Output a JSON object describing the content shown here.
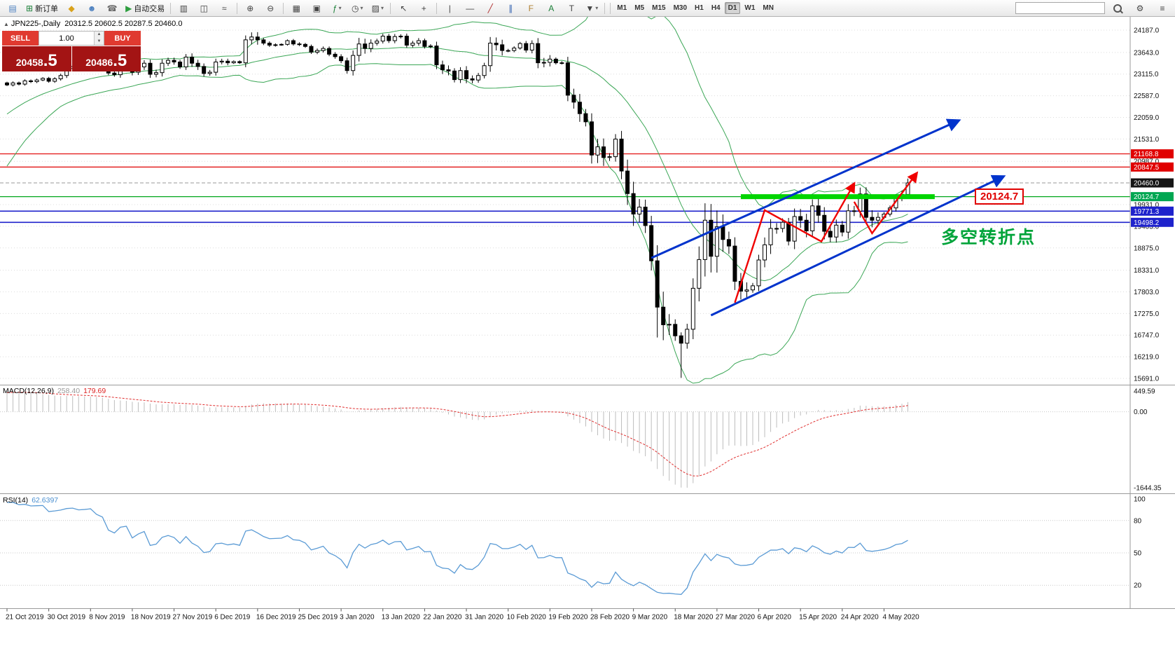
{
  "toolbar": {
    "items": [
      {
        "name": "new-chart-icon",
        "glyph": "▤",
        "color": "#4a7fbf"
      },
      {
        "name": "new-order-button",
        "glyph": "⊞",
        "label": "新订单",
        "color": "#1a7f37"
      },
      {
        "name": "mql5-market-icon",
        "glyph": "◆",
        "color": "#d9a21b"
      },
      {
        "name": "community-icon",
        "glyph": "☻",
        "color": "#4a7fbf"
      },
      {
        "name": "support-icon",
        "glyph": "☎",
        "color": "#6a6a6a"
      },
      {
        "name": "autotrade-button",
        "glyph": "▶",
        "label": "自动交易",
        "color": "#2e9e3f"
      },
      {
        "sep": true
      },
      {
        "name": "bar-chart-icon",
        "glyph": "▥",
        "color": "#444444"
      },
      {
        "name": "candlestick-chart-icon",
        "glyph": "◫",
        "color": "#444444"
      },
      {
        "name": "line-chart-icon",
        "glyph": "≈",
        "color": "#444444"
      },
      {
        "sep": true
      },
      {
        "name": "zoom-in-icon",
        "glyph": "⊕",
        "color": "#444444"
      },
      {
        "name": "zoom-out-icon",
        "glyph": "⊖",
        "color": "#444444"
      },
      {
        "sep": true
      },
      {
        "name": "tile-windows-icon",
        "glyph": "▦",
        "color": "#444444"
      },
      {
        "name": "auto-arrange-icon",
        "glyph": "▣",
        "color": "#444444"
      },
      {
        "name": "indicators-icon",
        "glyph": "ƒ",
        "color": "#1a7f37",
        "dropdown": true
      },
      {
        "name": "periods-icon",
        "glyph": "◷",
        "color": "#444444",
        "dropdown": true
      },
      {
        "name": "templates-icon",
        "glyph": "▨",
        "color": "#444444",
        "dropdown": true
      },
      {
        "sep": true
      },
      {
        "name": "cursor-icon",
        "glyph": "↖",
        "color": "#444444"
      },
      {
        "name": "crosshair-icon",
        "glyph": "+",
        "color": "#444444"
      },
      {
        "sep": true
      },
      {
        "name": "vertical-line-icon",
        "glyph": "|",
        "color": "#444444"
      },
      {
        "name": "horizontal-line-icon",
        "glyph": "—",
        "color": "#444444"
      },
      {
        "name": "trendline-icon",
        "glyph": "╱",
        "color": "#b03030"
      },
      {
        "name": "channel-icon",
        "glyph": "∥",
        "color": "#3060b0"
      },
      {
        "name": "fibonacci-icon",
        "glyph": "F",
        "color": "#b08030"
      },
      {
        "name": "text-icon",
        "glyph": "A",
        "color": "#1a7f37"
      },
      {
        "name": "label-icon",
        "glyph": "T",
        "color": "#444444"
      },
      {
        "name": "shapes-icon",
        "glyph": "▼",
        "color": "#444444",
        "dropdown": true
      },
      {
        "sep": true
      }
    ],
    "timeframes": [
      "M1",
      "M5",
      "M15",
      "M30",
      "H1",
      "H4",
      "D1",
      "W1",
      "MN"
    ],
    "active_timeframe": "D1",
    "search_value": ""
  },
  "chart_header": {
    "symbol": "JPN225-,Daily",
    "ohlc": "20312.5 20602.5 20287.5 20460.0"
  },
  "trade_panel": {
    "sell_label": "SELL",
    "buy_label": "BUY",
    "volume": "1.00",
    "sell_price_main": "20458",
    "sell_price_frac": ".5",
    "buy_price_main": "20486",
    "buy_price_frac": ".5"
  },
  "price_axis": {
    "grid_labels": [
      "24187.0",
      "23643.0",
      "23115.0",
      "22587.0",
      "22059.0",
      "21531.0",
      "20987.0",
      "19931.0",
      "19403.0",
      "18875.0",
      "18331.0",
      "17803.0",
      "17275.0",
      "16747.0",
      "16219.0",
      "15691.0"
    ],
    "badges": [
      {
        "text": "21168.8",
        "color": "#e00000"
      },
      {
        "text": "20847.5",
        "color": "#e00000"
      },
      {
        "text": "20460.0",
        "color": "#151515"
      },
      {
        "text": "20124.7",
        "color": "#00a651"
      },
      {
        "text": "19771.3",
        "color": "#1e22cc"
      },
      {
        "text": "19498.2",
        "color": "#1e22cc"
      }
    ]
  },
  "annotations": {
    "turning_point_text": "多空转折点",
    "level_label": "20124.7",
    "pivot_level": 20124.7,
    "pivot_color": "#00a61b",
    "pivot_thick_color": "#00d500",
    "thick_segment": {
      "from_idx": 123,
      "to_idx": 155.5
    },
    "resistance_levels": [
      21168.8,
      20847.5
    ],
    "resistance_color": "#e00000",
    "support_levels": [
      19771.3,
      19498.2
    ],
    "support_color": "#1e22cc",
    "current_price": 20460.0,
    "trendlines": [
      {
        "points": [
          [
            108,
            18630
          ],
          [
            159.5,
            21980
          ]
        ],
        "color": "#0033cc"
      },
      {
        "points": [
          [
            118,
            17230
          ],
          [
            167,
            20615
          ]
        ],
        "color": "#0033cc"
      }
    ],
    "impulse_paths": [
      {
        "points": [
          [
            122,
            17540
          ],
          [
            127,
            19795
          ],
          [
            136.5,
            19030
          ],
          [
            142,
            20445
          ]
        ],
        "color": "#f00000"
      },
      {
        "points": [
          [
            142,
            20000
          ],
          [
            145,
            19230
          ],
          [
            152.5,
            20700
          ]
        ],
        "color": "#f00000"
      }
    ]
  },
  "macd": {
    "label": "MACD(12,26,9)",
    "main_value": "258.40",
    "signal_value": "179.69",
    "axis_labels": [
      "449.59",
      "0.00",
      "-1644.35"
    ],
    "axis_values": [
      449.59,
      0,
      -1644.35
    ],
    "histogram_color": "#bdbdbd",
    "signal_color": "#e03030"
  },
  "rsi": {
    "label": "RSI(14)",
    "value": "62.6397",
    "period": 14,
    "axis_labels": [
      "100",
      "80",
      "50",
      "20"
    ],
    "levels": [
      80,
      50,
      20
    ],
    "line_color": "#5b9bd5"
  },
  "chart_data": {
    "type": "candlestick",
    "symbol": "JPN225",
    "timeframe": "Daily",
    "title": "JPN225-,Daily",
    "ohlc_display": [
      20312.5,
      20602.5,
      20287.5,
      20460.0
    ],
    "ylim": [
      15600,
      24450
    ],
    "x_labels": [
      "21 Oct 2019",
      "30 Oct 2019",
      "8 Nov 2019",
      "18 Nov 2019",
      "27 Nov 2019",
      "6 Dec 2019",
      "16 Dec 2019",
      "25 Dec 2019",
      "3 Jan 2020",
      "13 Jan 2020",
      "22 Jan 2020",
      "31 Jan 2020",
      "10 Feb 2020",
      "19 Feb 2020",
      "28 Feb 2020",
      "9 Mar 2020",
      "18 Mar 2020",
      "27 Mar 2020",
      "6 Apr 2020",
      "15 Apr 2020",
      "24 Apr 2020",
      "4 May 2020"
    ],
    "candles_per_label": 7,
    "closes": [
      22850,
      22900,
      22870,
      22950,
      22930,
      22970,
      23010,
      22940,
      23000,
      23080,
      23250,
      23300,
      23280,
      23320,
      23390,
      23330,
      23300,
      23140,
      23100,
      23300,
      23340,
      23160,
      23290,
      23380,
      23110,
      23150,
      23380,
      23450,
      23410,
      23290,
      23530,
      23380,
      23300,
      23130,
      23160,
      23410,
      23430,
      23390,
      23420,
      23390,
      23950,
      24020,
      23950,
      23870,
      23820,
      23830,
      23840,
      23930,
      23850,
      23840,
      23790,
      23650,
      23690,
      23740,
      23600,
      23540,
      23440,
      23200,
      23570,
      23850,
      23740,
      23870,
      23920,
      24040,
      23930,
      24030,
      24040,
      23820,
      23870,
      23930,
      23790,
      23800,
      23340,
      23220,
      23190,
      22980,
      23200,
      23000,
      22970,
      23080,
      23320,
      23870,
      23830,
      23690,
      23690,
      23750,
      23860,
      23700,
      23860,
      23390,
      23400,
      23480,
      23390,
      23390,
      22600,
      22430,
      22150,
      21950,
      21140,
      21340,
      21080,
      21100,
      21530,
      20750,
      20200,
      19700,
      19870,
      19420,
      18560,
      17430,
      17000,
      17010,
      16730,
      16550,
      16890,
      17890,
      18590,
      19550,
      18670,
      19390,
      19080,
      18920,
      18060,
      17820,
      17850,
      17950,
      18580,
      18950,
      19350,
      19350,
      19500,
      19040,
      19640,
      19550,
      19290,
      19900,
      19670,
      19280,
      19140,
      19430,
      19260,
      19780,
      19770,
      20190,
      19620,
      19550,
      19620,
      19700,
      19850,
      20100,
      20180,
      20460
    ],
    "last_close": 20460.0,
    "low_overrides": {
      "109": 16690,
      "113": 15705
    },
    "bollinger": {
      "period": 20,
      "deviation": 2,
      "color": "#3aa655",
      "seed_closes": [
        20700,
        20850,
        21000,
        21200,
        21450,
        21600,
        21750,
        21850,
        22000,
        22100,
        22250,
        22350,
        22450,
        22500,
        22600,
        22700,
        22750,
        22800,
        22850,
        22900
      ]
    }
  }
}
